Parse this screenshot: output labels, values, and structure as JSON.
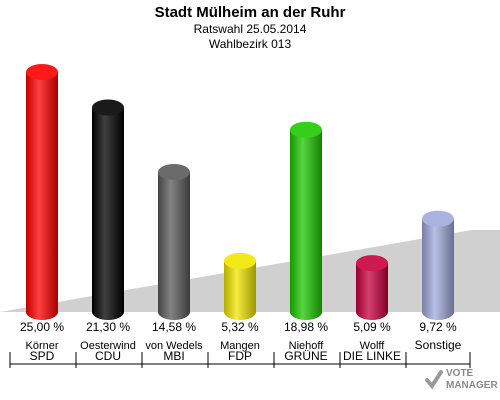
{
  "header": {
    "title": "Stadt Mülheim an der Ruhr",
    "subtitle": "Ratswahl 25.05.2014",
    "district": "Wahlbezirk 013"
  },
  "chart_data": {
    "type": "bar",
    "categories": [
      "SPD",
      "CDU",
      "MBI",
      "FDP",
      "GRÜNE",
      "DIE LINKE",
      "Sonstige"
    ],
    "candidates": [
      "Körner",
      "Oesterwind",
      "von Wedels",
      "Mangen",
      "Niehoff",
      "Wolff",
      ""
    ],
    "values": [
      25.0,
      21.3,
      14.58,
      5.32,
      18.98,
      5.09,
      9.72
    ],
    "value_labels": [
      "25,00 %",
      "21,30 %",
      "14,58 %",
      "5,32 %",
      "18,98 %",
      "5,09 %",
      "9,72 %"
    ],
    "colors": [
      "#ff0000",
      "#000000",
      "#5a5a5a",
      "#f2e600",
      "#1ec800",
      "#c8003c",
      "#a0aadc"
    ],
    "ylim": [
      0,
      25
    ]
  },
  "watermark": {
    "line1": "VOTE",
    "line2": "MANAGER"
  }
}
